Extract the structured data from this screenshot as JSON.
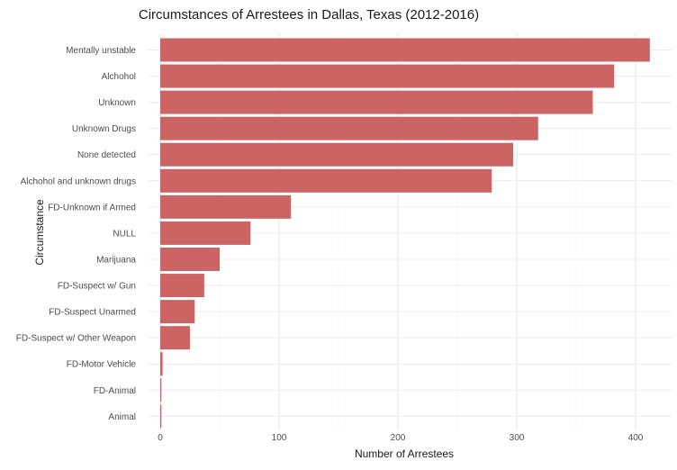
{
  "chart_data": {
    "type": "bar",
    "orientation": "horizontal",
    "title": "Circumstances of Arrestees in Dallas, Texas (2012-2016)",
    "xlabel": "Number of Arrestees",
    "ylabel": "Circumstance",
    "xlim": [
      0,
      420
    ],
    "xticks": [
      0,
      100,
      200,
      300,
      400
    ],
    "grid": true,
    "bar_color": "#cd6464",
    "categories": [
      "Mentally unstable",
      "Alchohol",
      "Unknown",
      "Unknown Drugs",
      "None detected",
      "Alchohol and unknown drugs",
      "FD-Unknown if Armed",
      "NULL",
      "Marijuana",
      "FD-Suspect w/ Gun",
      "FD-Suspect Unarmed",
      "FD-Suspect w/ Other Weapon",
      "FD-Motor Vehicle",
      "FD-Animal",
      "Animal"
    ],
    "values": [
      412,
      382,
      364,
      318,
      297,
      279,
      110,
      76,
      50,
      37,
      29,
      25,
      2,
      1,
      1
    ]
  }
}
